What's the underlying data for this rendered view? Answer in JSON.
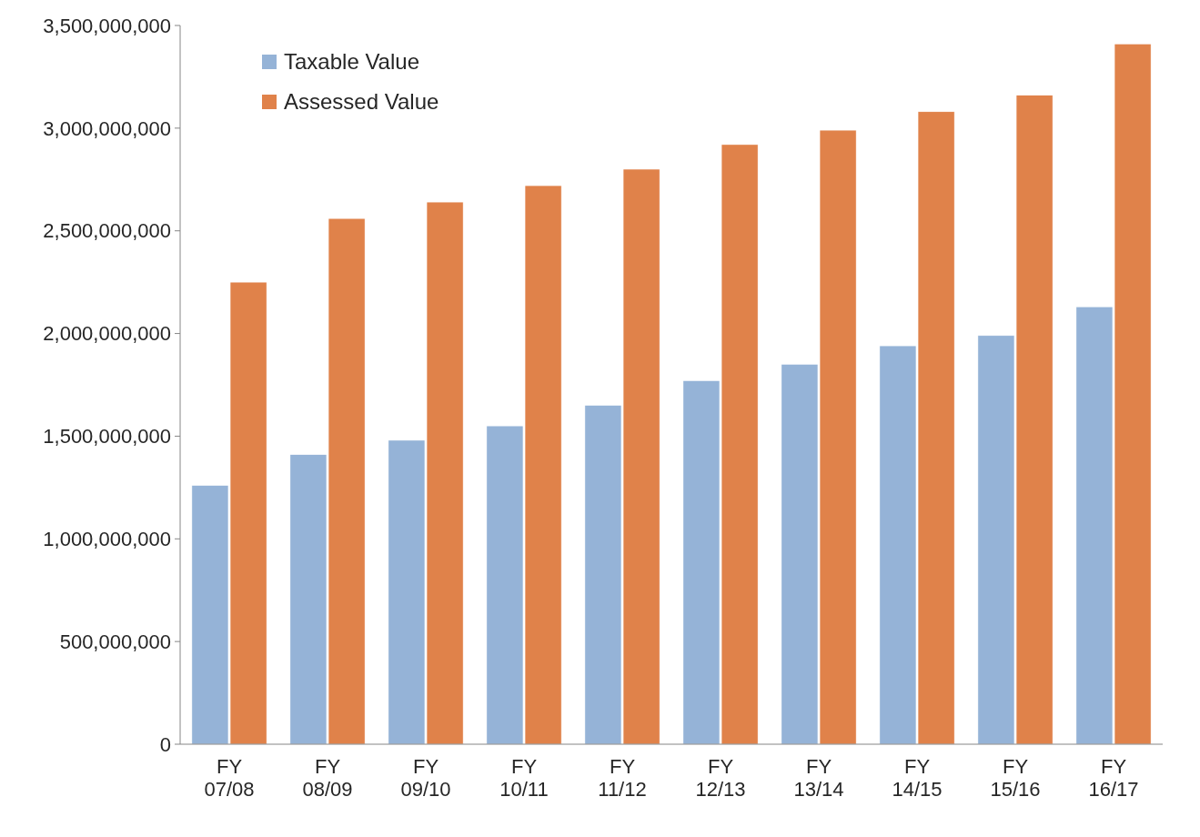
{
  "chart_data": {
    "type": "bar",
    "categories": [
      "FY 07/08",
      "FY 08/09",
      "FY 09/10",
      "FY 10/11",
      "FY 11/12",
      "FY 12/13",
      "FY 13/14",
      "FY 14/15",
      "FY 15/16",
      "FY 16/17"
    ],
    "series": [
      {
        "name": "Taxable Value",
        "color": "#95b3d7",
        "values": [
          1260000000,
          1410000000,
          1480000000,
          1550000000,
          1650000000,
          1770000000,
          1850000000,
          1940000000,
          1990000000,
          2130000000
        ]
      },
      {
        "name": "Assessed Value",
        "color": "#e0824a",
        "values": [
          2250000000,
          2560000000,
          2640000000,
          2720000000,
          2800000000,
          2920000000,
          2990000000,
          3080000000,
          3160000000,
          3410000000
        ]
      }
    ],
    "ylim": [
      0,
      3500000000
    ],
    "yticks": [
      {
        "value": 0,
        "label": "0"
      },
      {
        "value": 500000000,
        "label": "500,000,000"
      },
      {
        "value": 1000000000,
        "label": "1,000,000,000"
      },
      {
        "value": 1500000000,
        "label": "1,500,000,000"
      },
      {
        "value": 2000000000,
        "label": "2,000,000,000"
      },
      {
        "value": 2500000000,
        "label": "2,500,000,000"
      },
      {
        "value": 3000000000,
        "label": "3,000,000,000"
      },
      {
        "value": 3500000000,
        "label": "3,500,000,000"
      }
    ],
    "grid": false,
    "legend": "top left"
  }
}
